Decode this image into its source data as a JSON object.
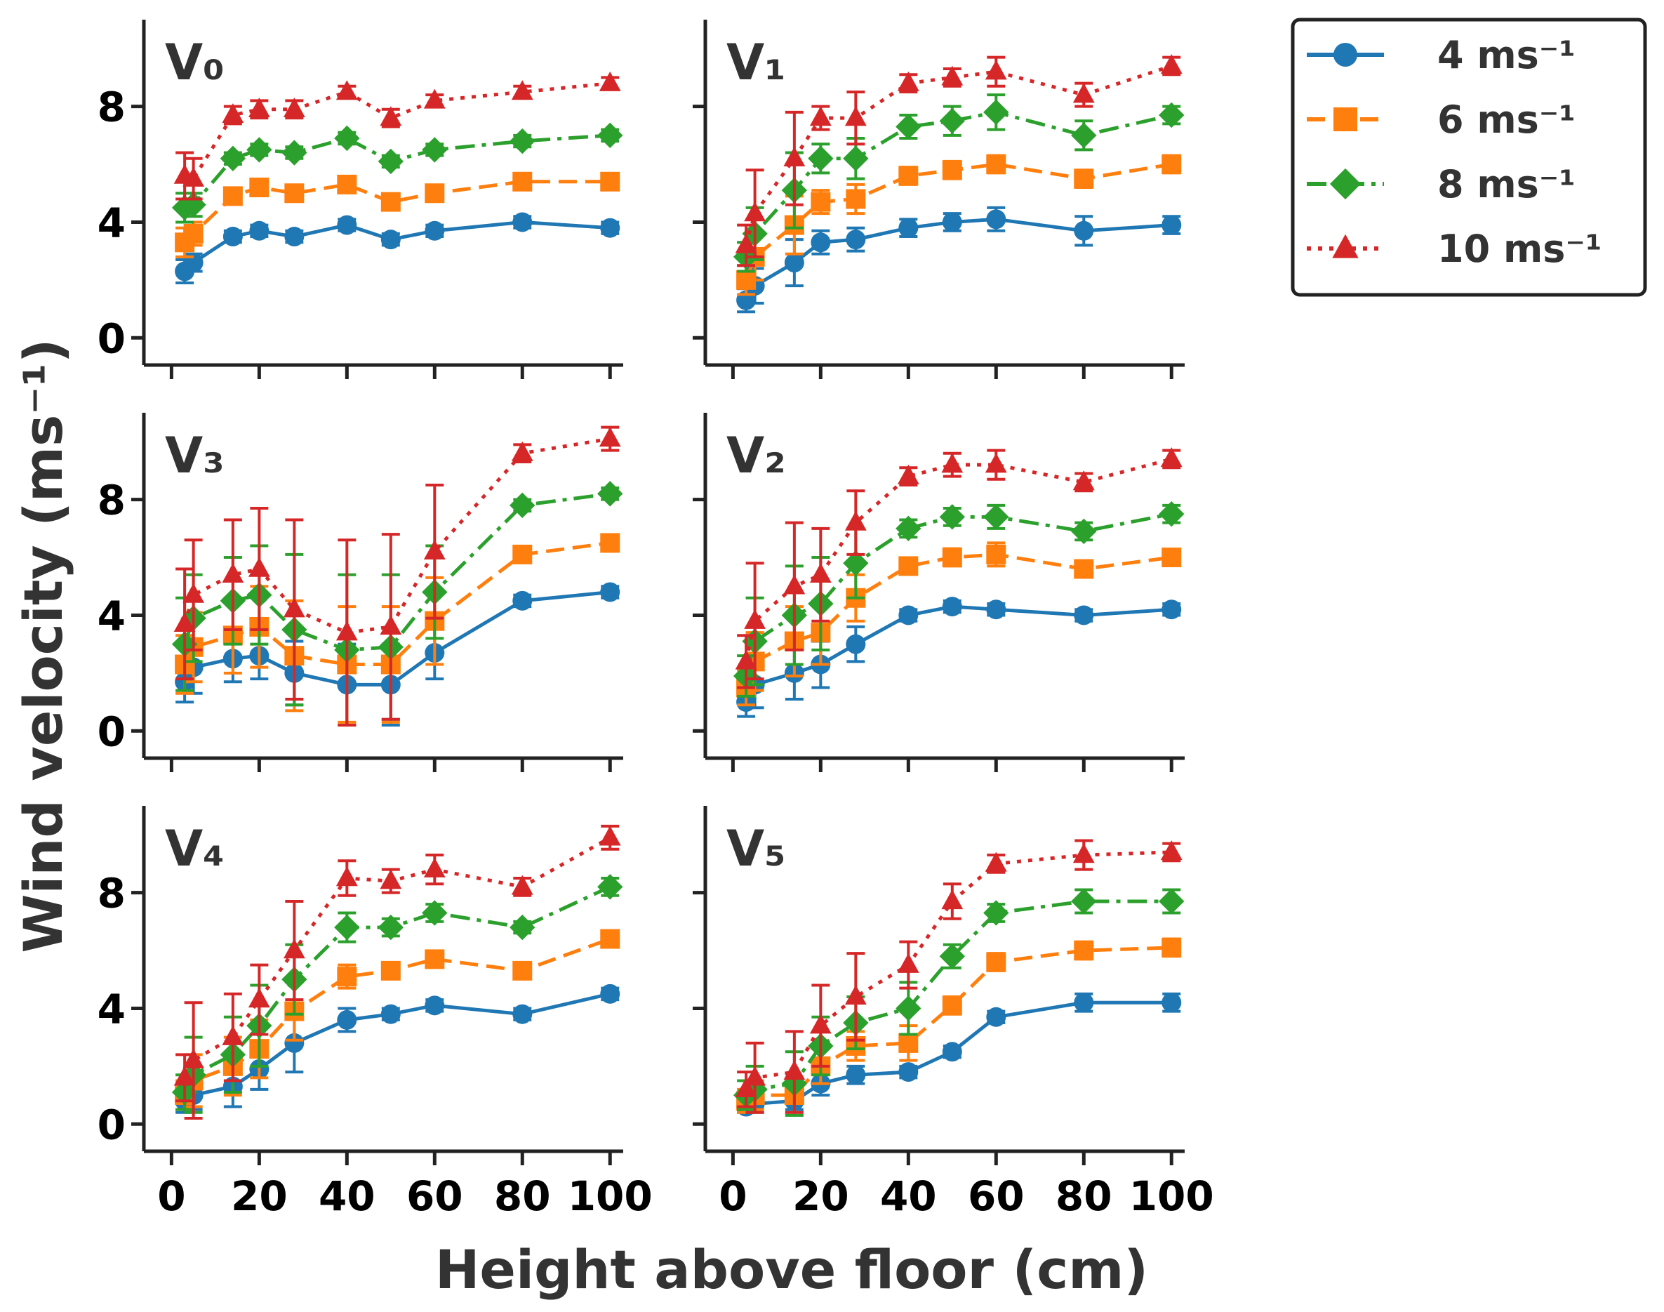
{
  "figure": {
    "ylabel": "Wind velocity (ms⁻¹)",
    "xlabel": "Height above floor (cm)"
  },
  "legend": {
    "placement": "top-right",
    "entries": [
      {
        "label": "4 ms⁻¹",
        "color": "#1f77b4",
        "marker": "circle",
        "linestyle": "solid"
      },
      {
        "label": "6 ms⁻¹",
        "color": "#ff7f0e",
        "marker": "square",
        "linestyle": "dashed"
      },
      {
        "label": "8 ms⁻¹",
        "color": "#2ca02c",
        "marker": "diamond",
        "linestyle": "dashdot"
      },
      {
        "label": "10 ms⁻¹",
        "color": "#d62728",
        "marker": "triangle",
        "linestyle": "dotted"
      }
    ]
  },
  "chart_data": [
    {
      "type": "line",
      "panel": "V₀",
      "x": [
        3,
        5,
        14,
        20,
        28,
        40,
        50,
        60,
        80,
        100
      ],
      "xlim": [
        0,
        100
      ],
      "ylim": [
        0,
        11
      ],
      "xticks": [
        0,
        20,
        40,
        60,
        80,
        100
      ],
      "yticks": [
        0,
        4,
        8
      ],
      "series": [
        {
          "name": "4 ms⁻¹",
          "values": [
            2.3,
            2.6,
            3.5,
            3.7,
            3.5,
            3.9,
            3.4,
            3.7,
            4.0,
            3.8
          ],
          "errors": [
            0.4,
            0.3,
            0.2,
            0.2,
            0.2,
            0.2,
            0.2,
            0.2,
            0.2,
            0.2
          ]
        },
        {
          "name": "6 ms⁻¹",
          "values": [
            3.3,
            3.6,
            4.9,
            5.2,
            5.0,
            5.3,
            4.7,
            5.0,
            5.4,
            5.4
          ],
          "errors": [
            0.5,
            0.4,
            0.2,
            0.2,
            0.2,
            0.2,
            0.2,
            0.2,
            0.2,
            0.2
          ]
        },
        {
          "name": "8 ms⁻¹",
          "values": [
            4.5,
            4.6,
            6.2,
            6.5,
            6.4,
            6.9,
            6.1,
            6.5,
            6.8,
            7.0
          ],
          "errors": [
            0.5,
            0.4,
            0.2,
            0.2,
            0.2,
            0.2,
            0.2,
            0.2,
            0.2,
            0.2
          ]
        },
        {
          "name": "10 ms⁻¹",
          "values": [
            5.6,
            5.5,
            7.7,
            7.9,
            7.9,
            8.5,
            7.6,
            8.2,
            8.5,
            8.8
          ],
          "errors": [
            0.8,
            0.7,
            0.3,
            0.3,
            0.3,
            0.2,
            0.3,
            0.2,
            0.2,
            0.2
          ]
        }
      ]
    },
    {
      "type": "line",
      "panel": "V₁",
      "x": [
        3,
        5,
        14,
        20,
        28,
        40,
        50,
        60,
        80,
        100
      ],
      "xlim": [
        0,
        100
      ],
      "ylim": [
        0,
        11
      ],
      "xticks": [
        0,
        20,
        40,
        60,
        80,
        100
      ],
      "yticks": [
        0,
        4,
        8
      ],
      "series": [
        {
          "name": "4 ms⁻¹",
          "values": [
            1.3,
            1.8,
            2.6,
            3.3,
            3.4,
            3.8,
            4.0,
            4.1,
            3.7,
            3.9
          ],
          "errors": [
            0.4,
            0.6,
            0.8,
            0.4,
            0.4,
            0.3,
            0.3,
            0.4,
            0.5,
            0.3
          ]
        },
        {
          "name": "6 ms⁻¹",
          "values": [
            2.0,
            2.8,
            3.9,
            4.7,
            4.8,
            5.6,
            5.8,
            6.0,
            5.5,
            6.0
          ],
          "errors": [
            0.5,
            0.8,
            1.0,
            0.4,
            0.5,
            0.3,
            0.3,
            0.3,
            0.3,
            0.3
          ]
        },
        {
          "name": "8 ms⁻¹",
          "values": [
            2.8,
            3.6,
            5.1,
            6.2,
            6.2,
            7.3,
            7.5,
            7.8,
            7.0,
            7.7
          ],
          "errors": [
            0.5,
            0.9,
            1.3,
            0.5,
            0.7,
            0.4,
            0.5,
            0.6,
            0.5,
            0.3
          ]
        },
        {
          "name": "10 ms⁻¹",
          "values": [
            3.2,
            4.3,
            6.2,
            7.6,
            7.6,
            8.8,
            9.0,
            9.2,
            8.4,
            9.4
          ],
          "errors": [
            0.7,
            1.5,
            1.6,
            0.4,
            0.9,
            0.3,
            0.3,
            0.5,
            0.4,
            0.3
          ]
        }
      ]
    },
    {
      "type": "line",
      "panel": "V₃",
      "x": [
        3,
        5,
        14,
        20,
        28,
        40,
        50,
        60,
        80,
        100
      ],
      "xlim": [
        0,
        100
      ],
      "ylim": [
        0,
        11
      ],
      "xticks": [
        0,
        20,
        40,
        60,
        80,
        100
      ],
      "yticks": [
        0,
        4,
        8
      ],
      "series": [
        {
          "name": "4 ms⁻¹",
          "values": [
            1.7,
            2.2,
            2.5,
            2.6,
            2.0,
            1.6,
            1.6,
            2.7,
            4.5,
            4.8
          ],
          "errors": [
            0.7,
            0.9,
            0.8,
            0.8,
            1.1,
            1.4,
            1.4,
            0.9,
            0.2,
            0.2
          ]
        },
        {
          "name": "6 ms⁻¹",
          "values": [
            2.3,
            2.9,
            3.3,
            3.6,
            2.6,
            2.3,
            2.3,
            3.8,
            6.1,
            6.5
          ],
          "errors": [
            1.0,
            1.2,
            1.3,
            1.4,
            1.9,
            2.0,
            2.0,
            1.5,
            0.2,
            0.2
          ]
        },
        {
          "name": "8 ms⁻¹",
          "values": [
            3.0,
            3.9,
            4.5,
            4.7,
            3.5,
            2.8,
            2.9,
            4.8,
            7.8,
            8.2
          ],
          "errors": [
            1.6,
            1.5,
            1.5,
            1.7,
            2.6,
            2.6,
            2.5,
            1.6,
            0.2,
            0.2
          ]
        },
        {
          "name": "10 ms⁻¹",
          "values": [
            3.7,
            4.7,
            5.4,
            5.6,
            4.2,
            3.4,
            3.6,
            6.2,
            9.6,
            10.1
          ],
          "errors": [
            1.9,
            1.9,
            1.9,
            2.1,
            3.1,
            3.2,
            3.2,
            2.3,
            0.3,
            0.4
          ]
        }
      ]
    },
    {
      "type": "line",
      "panel": "V₂",
      "x": [
        3,
        5,
        14,
        20,
        28,
        40,
        50,
        60,
        80,
        100
      ],
      "xlim": [
        0,
        100
      ],
      "ylim": [
        0,
        11
      ],
      "xticks": [
        0,
        20,
        40,
        60,
        80,
        100
      ],
      "yticks": [
        0,
        4,
        8
      ],
      "series": [
        {
          "name": "4 ms⁻¹",
          "values": [
            1.0,
            1.6,
            2.0,
            2.3,
            3.0,
            4.0,
            4.3,
            4.2,
            4.0,
            4.2
          ],
          "errors": [
            0.5,
            0.8,
            0.9,
            0.8,
            0.6,
            0.2,
            0.2,
            0.2,
            0.2,
            0.2
          ]
        },
        {
          "name": "6 ms⁻¹",
          "values": [
            1.5,
            2.4,
            3.1,
            3.4,
            4.6,
            5.7,
            6.0,
            6.1,
            5.6,
            6.0
          ],
          "errors": [
            0.6,
            1.0,
            1.2,
            1.1,
            0.8,
            0.2,
            0.3,
            0.4,
            0.2,
            0.2
          ]
        },
        {
          "name": "8 ms⁻¹",
          "values": [
            1.9,
            3.1,
            4.0,
            4.4,
            5.8,
            7.0,
            7.4,
            7.4,
            6.9,
            7.5
          ],
          "errors": [
            0.7,
            1.5,
            1.7,
            1.6,
            1.2,
            0.3,
            0.3,
            0.4,
            0.3,
            0.3
          ]
        },
        {
          "name": "10 ms⁻¹",
          "values": [
            2.4,
            3.8,
            5.0,
            5.4,
            7.2,
            8.8,
            9.2,
            9.2,
            8.6,
            9.4
          ],
          "errors": [
            0.9,
            2.0,
            2.2,
            1.6,
            1.1,
            0.3,
            0.4,
            0.5,
            0.3,
            0.3
          ]
        }
      ]
    },
    {
      "type": "line",
      "panel": "V₄",
      "x": [
        3,
        5,
        14,
        20,
        28,
        40,
        50,
        60,
        80,
        100
      ],
      "xlim": [
        0,
        100
      ],
      "ylim": [
        0,
        11
      ],
      "xticks": [
        0,
        20,
        40,
        60,
        80,
        100
      ],
      "yticks": [
        0,
        4,
        8
      ],
      "series": [
        {
          "name": "4 ms⁻¹",
          "values": [
            0.8,
            1.0,
            1.3,
            1.9,
            2.8,
            3.6,
            3.8,
            4.1,
            3.8,
            4.5
          ],
          "errors": [
            0.4,
            0.5,
            0.7,
            0.7,
            1.0,
            0.4,
            0.2,
            0.2,
            0.2,
            0.2
          ]
        },
        {
          "name": "6 ms⁻¹",
          "values": [
            1.0,
            1.5,
            2.0,
            2.6,
            3.9,
            5.1,
            5.3,
            5.7,
            5.3,
            6.4
          ],
          "errors": [
            0.5,
            0.9,
            1.0,
            1.0,
            1.0,
            0.4,
            0.2,
            0.2,
            0.2,
            0.2
          ]
        },
        {
          "name": "8 ms⁻¹",
          "values": [
            1.1,
            1.7,
            2.4,
            3.4,
            5.0,
            6.8,
            6.8,
            7.3,
            6.8,
            8.2
          ],
          "errors": [
            0.6,
            1.3,
            1.3,
            1.4,
            1.2,
            0.5,
            0.3,
            0.3,
            0.2,
            0.3
          ]
        },
        {
          "name": "10 ms⁻¹",
          "values": [
            1.6,
            2.2,
            3.0,
            4.3,
            6.0,
            8.5,
            8.4,
            8.8,
            8.2,
            9.9
          ],
          "errors": [
            0.8,
            2.0,
            1.5,
            1.2,
            1.7,
            0.6,
            0.4,
            0.5,
            0.3,
            0.4
          ]
        }
      ]
    },
    {
      "type": "line",
      "panel": "V₅",
      "x": [
        3,
        5,
        14,
        20,
        28,
        40,
        50,
        60,
        80,
        100
      ],
      "xlim": [
        0,
        100
      ],
      "ylim": [
        0,
        11
      ],
      "xticks": [
        0,
        20,
        40,
        60,
        80,
        100
      ],
      "yticks": [
        0,
        4,
        8
      ],
      "series": [
        {
          "name": "4 ms⁻¹",
          "values": [
            0.6,
            0.7,
            0.8,
            1.4,
            1.7,
            1.8,
            2.5,
            3.7,
            4.2,
            4.2
          ],
          "errors": [
            0.2,
            0.2,
            0.3,
            0.4,
            0.3,
            0.2,
            0.2,
            0.2,
            0.3,
            0.3
          ]
        },
        {
          "name": "6 ms⁻¹",
          "values": [
            0.8,
            1.0,
            1.0,
            2.0,
            2.7,
            2.8,
            4.1,
            5.6,
            6.0,
            6.1
          ],
          "errors": [
            0.4,
            0.5,
            0.6,
            0.6,
            0.5,
            0.6,
            0.3,
            0.3,
            0.3,
            0.3
          ]
        },
        {
          "name": "8 ms⁻¹",
          "values": [
            1.0,
            1.2,
            1.4,
            2.7,
            3.5,
            4.0,
            5.8,
            7.3,
            7.7,
            7.7
          ],
          "errors": [
            0.5,
            0.8,
            1.1,
            1.0,
            0.9,
            0.9,
            0.4,
            0.3,
            0.4,
            0.4
          ]
        },
        {
          "name": "10 ms⁻¹",
          "values": [
            1.2,
            1.6,
            1.8,
            3.4,
            4.4,
            5.5,
            7.7,
            9.0,
            9.3,
            9.4
          ],
          "errors": [
            0.6,
            1.2,
            1.4,
            1.4,
            1.5,
            0.8,
            0.6,
            0.3,
            0.5,
            0.3
          ]
        }
      ]
    }
  ]
}
